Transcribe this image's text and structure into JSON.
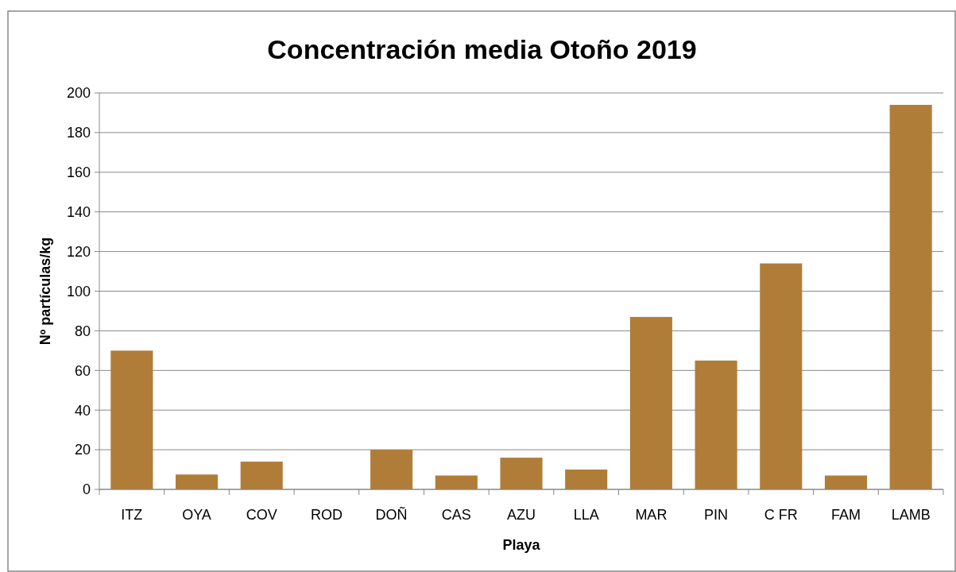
{
  "chart_data": {
    "type": "bar",
    "title": "Concentración media Otoño 2019",
    "xlabel": "Playa",
    "ylabel": "Nº partículas/kg",
    "categories": [
      "ITZ",
      "OYA",
      "COV",
      "ROD",
      "DOÑ",
      "CAS",
      "AZU",
      "LLA",
      "MAR",
      "PIN",
      "C FR",
      "FAM",
      "LAMB"
    ],
    "values": [
      70,
      7.5,
      14,
      0,
      20,
      7,
      16,
      10,
      87,
      65,
      114,
      7,
      194
    ],
    "color": "#b07d38",
    "ylim": [
      0,
      200
    ],
    "yticks": [
      0,
      20,
      40,
      60,
      80,
      100,
      120,
      140,
      160,
      180,
      200
    ],
    "grid": "y"
  }
}
